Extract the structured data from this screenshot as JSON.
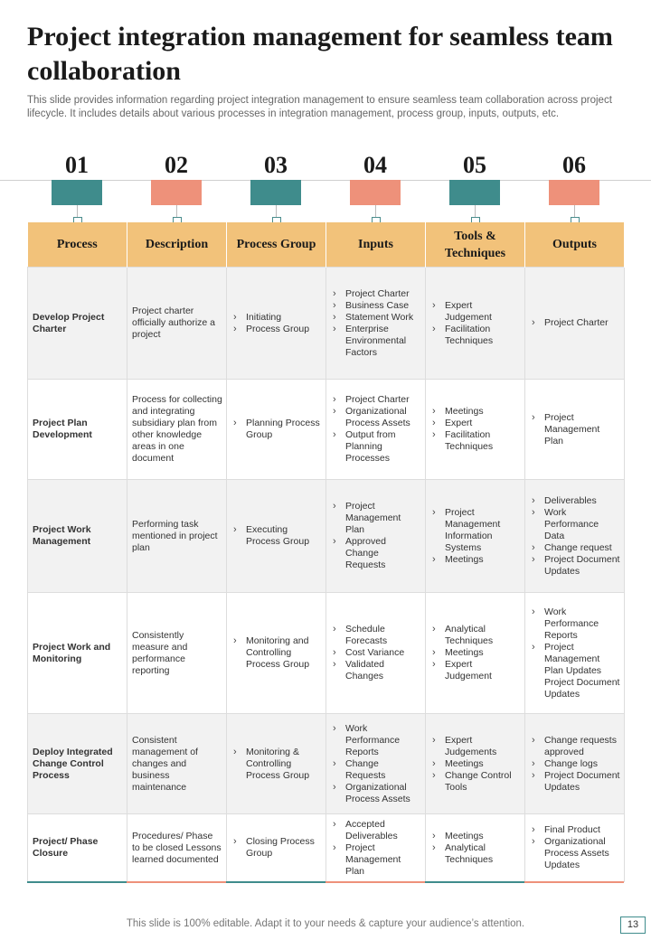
{
  "title": "Project integration management for seamless team collaboration",
  "subtitle": "This slide provides information regarding project integration management to ensure seamless team collaboration across project lifecycle.  It includes details about various processes in integration management, process group, inputs, outputs, etc.",
  "steps": [
    "01",
    "02",
    "03",
    "04",
    "05",
    "06"
  ],
  "colors": {
    "teal": "#3f8c8c",
    "salmon": "#ee917a",
    "header": "#f2c27a",
    "stripe": "#f2f2f2"
  },
  "table": {
    "headers": [
      "Process",
      "Description",
      "Process Group",
      "Inputs",
      "Tools & Techniques",
      "Outputs"
    ],
    "rows": [
      {
        "process": "Develop Project Charter",
        "description": "Project charter officially authorize a project",
        "group": [
          "Initiating",
          "Process Group"
        ],
        "inputs": [
          "Project Charter",
          "Business Case",
          "Statement Work",
          "Enterprise Environmental Factors"
        ],
        "tools": [
          "Expert Judgement",
          "Facilitation Techniques"
        ],
        "outputs": [
          "Project Charter"
        ]
      },
      {
        "process": "Project Plan Development",
        "description": "Process for collecting and integrating subsidiary plan from other knowledge areas in one document",
        "group": [
          "Planning Process Group"
        ],
        "inputs": [
          "Project Charter",
          "Organizational Process Assets",
          "Output from Planning Processes"
        ],
        "tools": [
          "Meetings",
          "Expert",
          "Facilitation Techniques"
        ],
        "outputs": [
          "Project Management Plan"
        ]
      },
      {
        "process": "Project Work Management",
        "description": "Performing task mentioned in project plan",
        "group": [
          "Executing Process Group"
        ],
        "inputs": [
          "Project Management Plan",
          "Approved Change Requests"
        ],
        "tools": [
          "Project Management Information Systems",
          "Meetings"
        ],
        "outputs": [
          "Deliverables",
          "Work Performance Data",
          "Change request",
          "Project Document Updates"
        ]
      },
      {
        "process": "Project Work and Monitoring",
        "description": "Consistently measure and performance reporting",
        "group": [
          "Monitoring and Controlling Process Group"
        ],
        "inputs": [
          "Schedule Forecasts",
          "Cost Variance",
          "Validated Changes"
        ],
        "tools": [
          "Analytical Techniques",
          "Meetings",
          "Expert Judgement"
        ],
        "outputs": [
          "Work Performance Reports",
          "Project Management Plan Updates Project Document Updates"
        ]
      },
      {
        "process": "Deploy Integrated Change Control Process",
        "description": "Consistent management of changes and business maintenance",
        "group": [
          "Monitoring & Controlling Process Group"
        ],
        "inputs": [
          "Work Performance Reports",
          "Change Requests",
          "Organizational Process Assets"
        ],
        "tools": [
          "Expert Judgements",
          "Meetings",
          "Change Control Tools"
        ],
        "outputs": [
          "Change requests approved",
          "Change logs",
          "Project Document Updates"
        ]
      },
      {
        "process": "Project/ Phase Closure",
        "description": "Procedures/ Phase to be closed Lessons learned documented",
        "group": [
          "Closing Process Group"
        ],
        "inputs": [
          "Accepted Deliverables",
          "Project Management Plan"
        ],
        "tools": [
          "Meetings",
          "Analytical Techniques"
        ],
        "outputs": [
          "Final Product",
          "Organizational Process Assets Updates"
        ]
      }
    ]
  },
  "footer": "This slide is 100% editable. Adapt it to your needs & capture your audience’s attention.",
  "page_number": "13"
}
